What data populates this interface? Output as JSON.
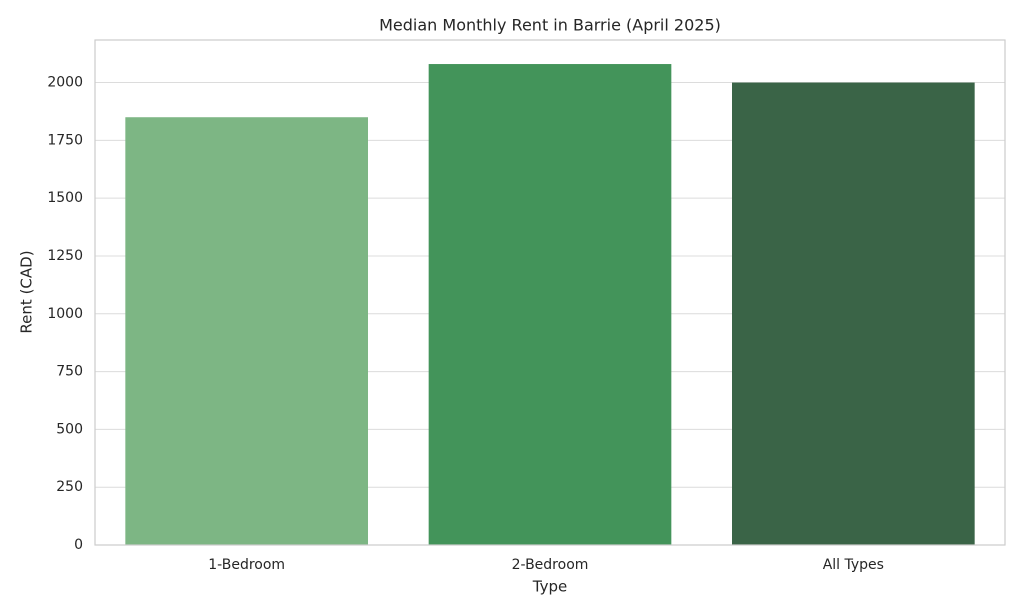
{
  "chart_data": {
    "type": "bar",
    "title": "Median Monthly Rent in Barrie (April 2025)",
    "x_label": "Type",
    "y_label": "Rent (CAD)",
    "categories": [
      "1-Bedroom",
      "2-Bedroom",
      "All Types"
    ],
    "values": [
      1850,
      2080,
      2000
    ],
    "colors": [
      "#7db684",
      "#43945a",
      "#3a6447"
    ],
    "ylim": [
      0,
      2184
    ],
    "yticks": [
      0,
      250,
      500,
      750,
      1000,
      1250,
      1500,
      1750,
      2000
    ],
    "grid": true
  }
}
